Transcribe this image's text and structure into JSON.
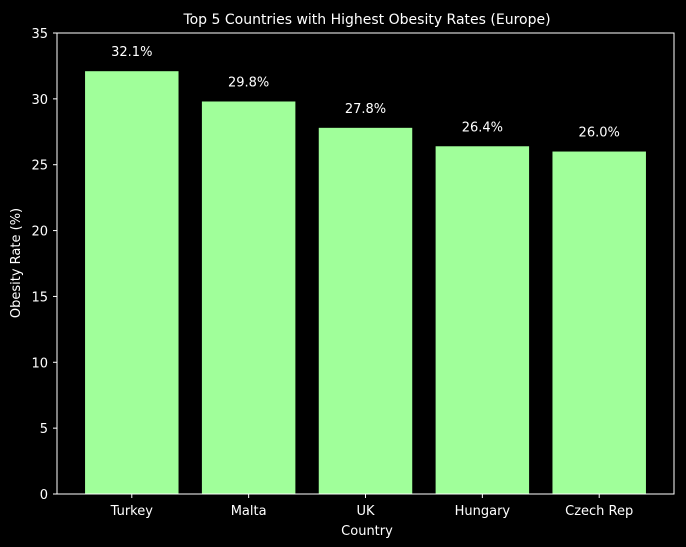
{
  "chart_data": {
    "type": "bar",
    "title": "Top 5 Countries with Highest Obesity Rates (Europe)",
    "xlabel": "Country",
    "ylabel": "Obesity Rate (%)",
    "categories": [
      "Turkey",
      "Malta",
      "UK",
      "Hungary",
      "Czech Rep"
    ],
    "values": [
      32.1,
      29.8,
      27.8,
      26.4,
      26.0
    ],
    "value_labels": [
      "32.1%",
      "29.8%",
      "27.8%",
      "26.4%",
      "26.0%"
    ],
    "ylim": [
      0,
      35
    ],
    "yticks": [
      0,
      5,
      10,
      15,
      20,
      25,
      30,
      35
    ],
    "grid": false,
    "legend": "none",
    "colors": {
      "background": "#000000",
      "bar": "#a0ff9a",
      "text": "#ffffff",
      "axis": "#ffffff"
    }
  }
}
